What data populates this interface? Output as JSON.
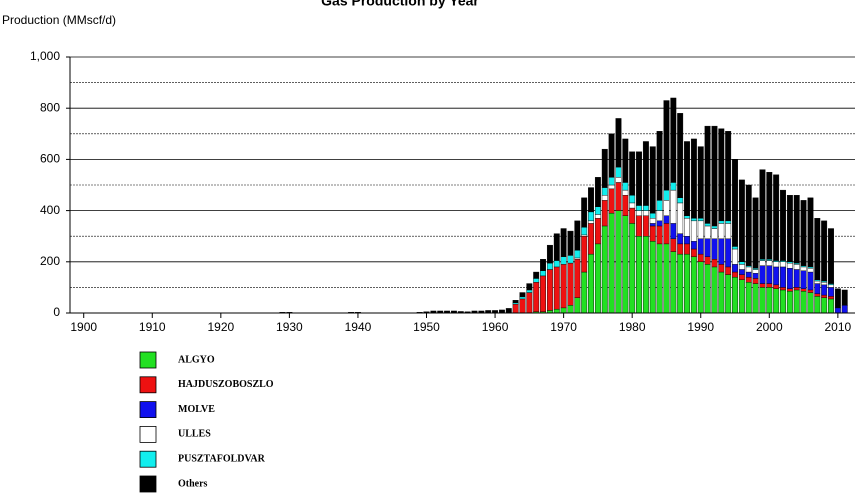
{
  "chart_data": {
    "type": "stacked_bar",
    "title": "Gas Production by Year",
    "ylabel": "Production (MMscf/d)",
    "x": [
      1929,
      1930,
      1939,
      1940,
      1949,
      1950,
      1951,
      1952,
      1953,
      1954,
      1955,
      1956,
      1957,
      1958,
      1959,
      1960,
      1961,
      1962,
      1963,
      1964,
      1965,
      1966,
      1967,
      1968,
      1969,
      1970,
      1971,
      1972,
      1973,
      1974,
      1975,
      1976,
      1977,
      1978,
      1979,
      1980,
      1981,
      1982,
      1983,
      1984,
      1985,
      1986,
      1987,
      1988,
      1989,
      1990,
      1991,
      1992,
      1993,
      1994,
      1995,
      1996,
      1997,
      1998,
      1999,
      2000,
      2001,
      2002,
      2003,
      2004,
      2005,
      2006,
      2007,
      2008,
      2009,
      2010,
      2011
    ],
    "series": [
      {
        "name": "ALGYO",
        "color": "#22e022",
        "values": [
          0,
          0,
          0,
          0,
          0,
          0,
          0,
          0,
          0,
          0,
          0,
          0,
          0,
          0,
          0,
          0,
          0,
          0,
          0,
          0,
          0,
          5,
          5,
          10,
          15,
          20,
          30,
          60,
          160,
          230,
          270,
          340,
          390,
          400,
          380,
          350,
          300,
          300,
          280,
          270,
          270,
          240,
          230,
          230,
          220,
          200,
          190,
          180,
          160,
          150,
          140,
          130,
          120,
          115,
          100,
          100,
          95,
          90,
          85,
          90,
          85,
          80,
          65,
          60,
          55,
          0,
          0
        ]
      },
      {
        "name": "HAJDUSZOBOSZLO",
        "color": "#ee1111",
        "values": [
          0,
          0,
          0,
          0,
          0,
          0,
          0,
          0,
          0,
          0,
          0,
          0,
          0,
          0,
          0,
          0,
          0,
          0,
          35,
          55,
          80,
          115,
          140,
          160,
          165,
          170,
          165,
          150,
          140,
          120,
          100,
          100,
          95,
          110,
          80,
          60,
          80,
          80,
          60,
          70,
          80,
          50,
          40,
          40,
          30,
          30,
          30,
          30,
          30,
          30,
          20,
          20,
          20,
          20,
          15,
          15,
          15,
          10,
          10,
          10,
          10,
          10,
          10,
          10,
          10,
          0,
          0
        ]
      },
      {
        "name": "MOLVE",
        "color": "#1111ee",
        "values": [
          0,
          0,
          0,
          0,
          0,
          0,
          0,
          0,
          0,
          0,
          0,
          0,
          0,
          0,
          0,
          0,
          0,
          0,
          0,
          0,
          0,
          0,
          0,
          0,
          0,
          0,
          0,
          0,
          0,
          0,
          0,
          0,
          0,
          0,
          0,
          0,
          0,
          0,
          10,
          20,
          30,
          60,
          40,
          30,
          30,
          60,
          70,
          80,
          100,
          110,
          30,
          20,
          20,
          20,
          70,
          70,
          70,
          80,
          80,
          70,
          70,
          70,
          40,
          40,
          35,
          20,
          30
        ]
      },
      {
        "name": "ULLES",
        "color": "#ffffff",
        "values": [
          0,
          0,
          0,
          0,
          0,
          0,
          0,
          0,
          0,
          0,
          0,
          0,
          0,
          0,
          0,
          0,
          0,
          0,
          0,
          0,
          0,
          0,
          0,
          0,
          0,
          0,
          0,
          5,
          5,
          10,
          15,
          20,
          15,
          20,
          20,
          20,
          20,
          20,
          20,
          40,
          60,
          130,
          120,
          70,
          80,
          70,
          50,
          40,
          60,
          60,
          60,
          20,
          20,
          15,
          20,
          20,
          20,
          20,
          20,
          20,
          15,
          15,
          10,
          10,
          10,
          0,
          0
        ]
      },
      {
        "name": "PUSZTAFOLDVAR",
        "color": "#11eeee",
        "values": [
          0,
          0,
          0,
          0,
          0,
          0,
          0,
          0,
          0,
          0,
          0,
          0,
          0,
          0,
          0,
          0,
          0,
          0,
          5,
          8,
          10,
          15,
          20,
          25,
          25,
          30,
          30,
          30,
          30,
          35,
          30,
          30,
          30,
          40,
          30,
          30,
          20,
          20,
          20,
          40,
          40,
          30,
          20,
          10,
          10,
          10,
          10,
          10,
          10,
          10,
          10,
          10,
          5,
          5,
          5,
          5,
          5,
          5,
          5,
          5,
          5,
          5,
          5,
          5,
          5,
          0,
          0
        ]
      },
      {
        "name": "Others",
        "color": "#000000",
        "values": [
          3,
          3,
          3,
          3,
          3,
          5,
          8,
          8,
          8,
          8,
          6,
          5,
          8,
          8,
          10,
          10,
          12,
          18,
          10,
          17,
          25,
          25,
          45,
          70,
          105,
          110,
          95,
          115,
          115,
          95,
          115,
          150,
          170,
          190,
          170,
          170,
          210,
          250,
          260,
          270,
          350,
          330,
          330,
          290,
          310,
          280,
          380,
          390,
          360,
          350,
          340,
          320,
          315,
          275,
          350,
          340,
          335,
          275,
          260,
          265,
          255,
          270,
          240,
          235,
          215,
          75,
          60
        ]
      }
    ],
    "xlim": [
      1898,
      2012.5
    ],
    "xticks": [
      1900,
      1910,
      1920,
      1930,
      1940,
      1950,
      1960,
      1970,
      1980,
      1990,
      2000,
      2010
    ],
    "ylim": [
      0,
      1000
    ],
    "yticks": [
      0,
      200,
      400,
      600,
      800,
      {
        "value": 1000,
        "label": "1,000"
      }
    ],
    "yminor": [
      100,
      300,
      500,
      700,
      900
    ],
    "grid": true
  }
}
